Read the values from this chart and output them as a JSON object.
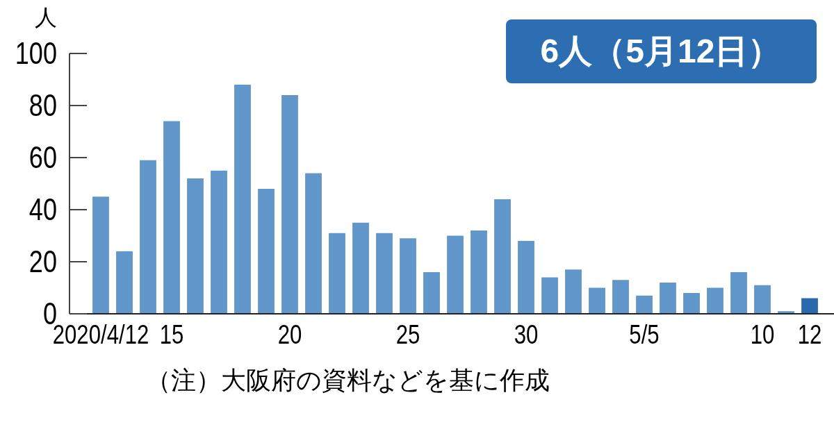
{
  "chart_data": {
    "type": "bar",
    "ylabel": "人",
    "categories": [
      "2020/4/12",
      null,
      null,
      "15",
      null,
      null,
      null,
      null,
      "20",
      null,
      null,
      null,
      null,
      "25",
      null,
      null,
      null,
      null,
      "30",
      null,
      null,
      null,
      null,
      "5/5",
      null,
      null,
      null,
      null,
      "10",
      null,
      "12"
    ],
    "values": [
      45,
      24,
      59,
      74,
      52,
      55,
      88,
      48,
      84,
      54,
      31,
      35,
      31,
      29,
      16,
      30,
      32,
      44,
      28,
      14,
      17,
      10,
      13,
      7,
      12,
      8,
      10,
      16,
      11,
      1,
      6
    ],
    "colors": [
      "#6096c9",
      "#6096c9",
      "#6096c9",
      "#6096c9",
      "#6096c9",
      "#6096c9",
      "#6096c9",
      "#6096c9",
      "#6096c9",
      "#6096c9",
      "#6096c9",
      "#6096c9",
      "#6096c9",
      "#6096c9",
      "#6096c9",
      "#6096c9",
      "#6096c9",
      "#6096c9",
      "#6096c9",
      "#6096c9",
      "#6096c9",
      "#6096c9",
      "#6096c9",
      "#6096c9",
      "#6096c9",
      "#6096c9",
      "#6096c9",
      "#6096c9",
      "#6096c9",
      "#6096c9",
      "#2a69ad"
    ],
    "ylim": [
      0,
      100
    ],
    "yticks": [
      0,
      20,
      40,
      60,
      80,
      100
    ],
    "grid": false,
    "annotations": [
      "6人（5月12日）",
      "（注）大阪府の資料などを基に作成"
    ]
  }
}
